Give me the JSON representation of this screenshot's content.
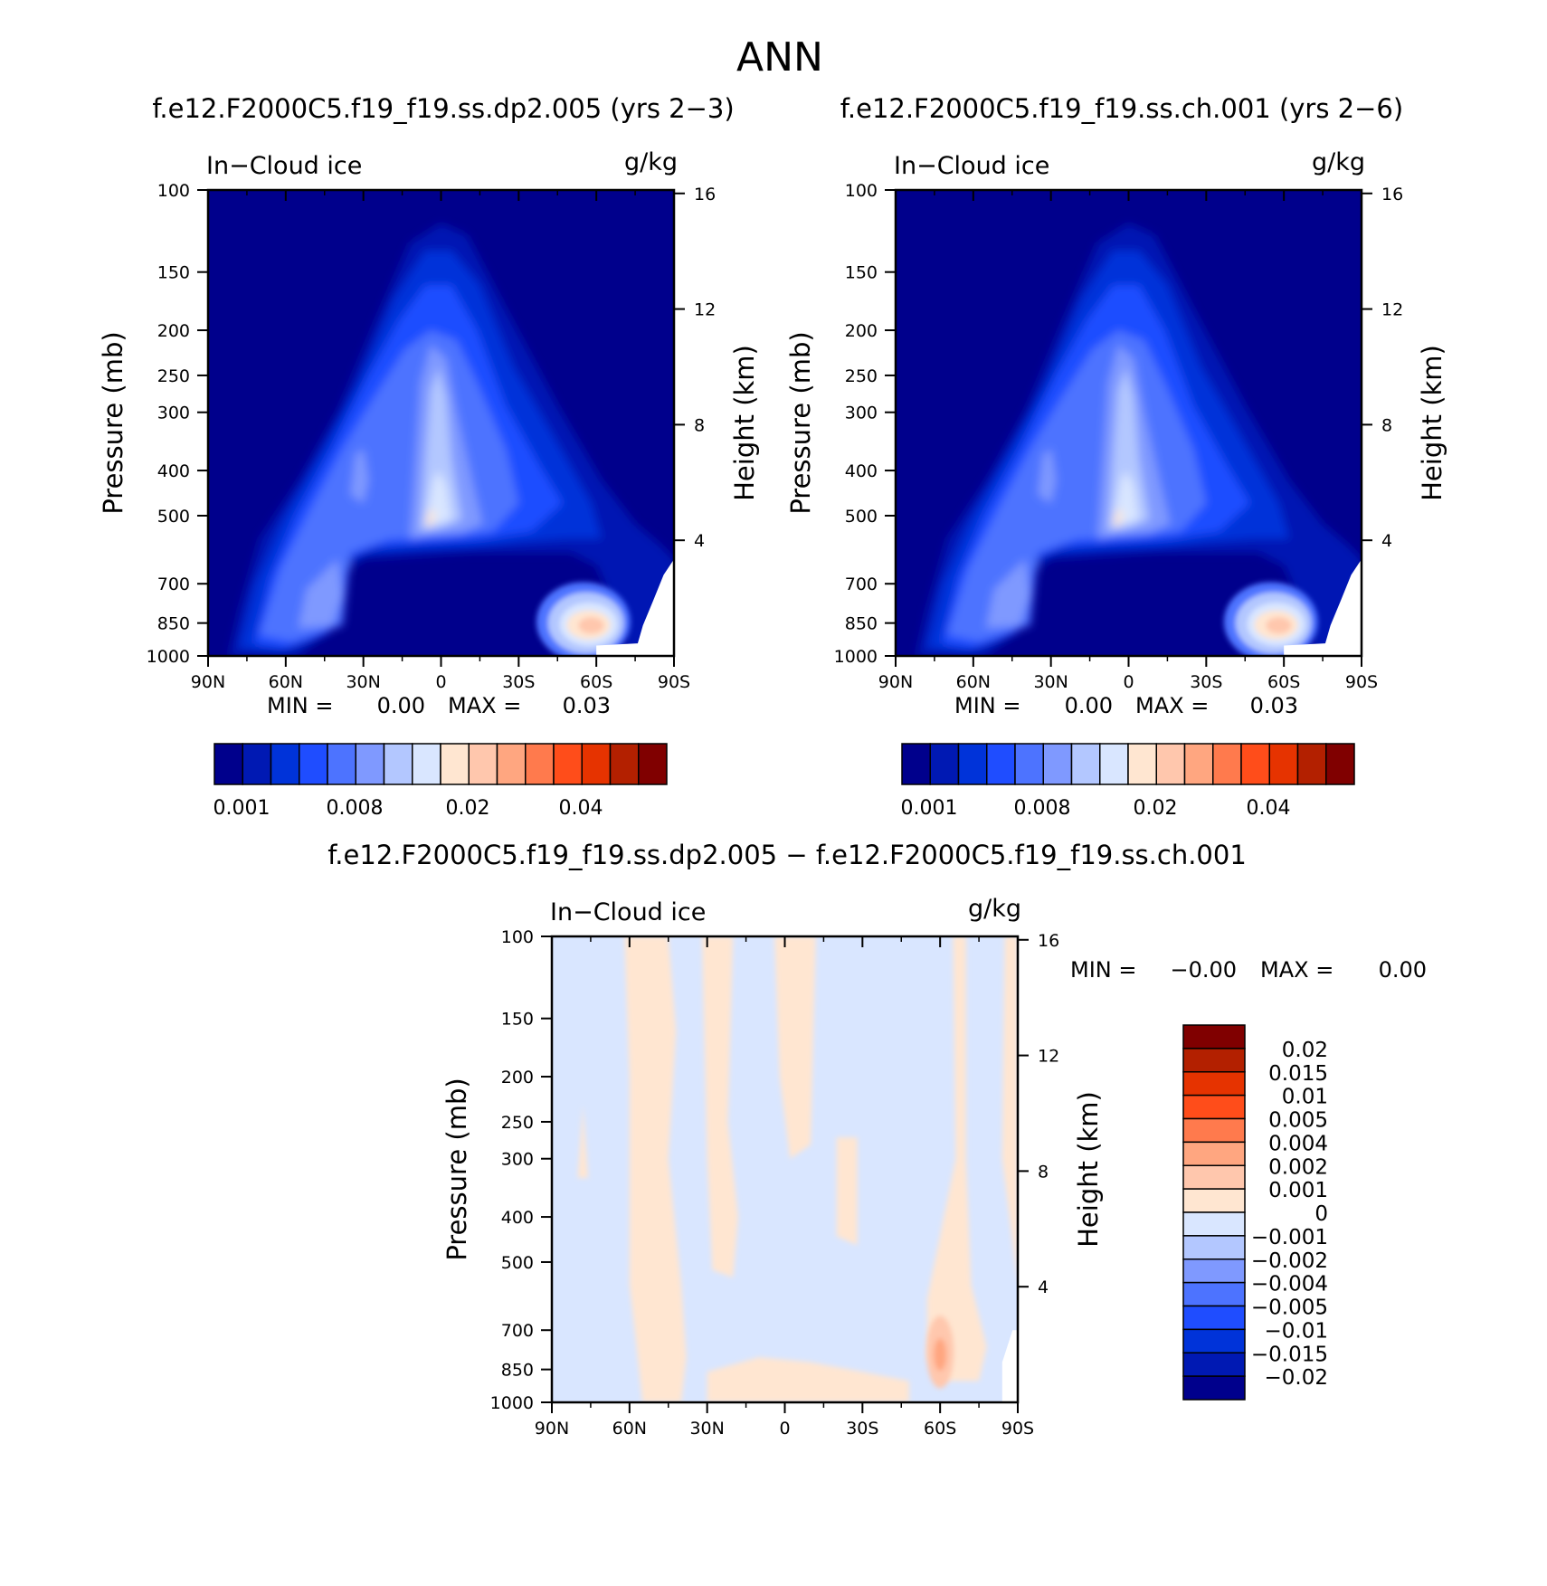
{
  "figure": {
    "title": "ANN"
  },
  "colors": {
    "abs_palette": [
      "#00008c",
      "#0019b3",
      "#0033d9",
      "#1f4dff",
      "#4d73ff",
      "#7f99ff",
      "#b3c7ff",
      "#d9e6ff",
      "#ffe6d1",
      "#ffc7ad",
      "#ffa680",
      "#ff7a4d",
      "#ff4d1a",
      "#e63300",
      "#b32000",
      "#800000"
    ],
    "diff_palette": [
      "#00008c",
      "#0019b3",
      "#0033d9",
      "#1f4dff",
      "#4d73ff",
      "#7f99ff",
      "#b3c7ff",
      "#d9e6ff",
      "#ffe6d1",
      "#ffc7ad",
      "#ffa680",
      "#ff7a4d",
      "#ff4d1a",
      "#e63300",
      "#b32000",
      "#800000"
    ]
  },
  "chart_data": [
    {
      "type": "heatmap",
      "title": "f.e12.F2000C5.f19_f19.ss.dp2.005 (yrs 2−3)",
      "variable": "In−Cloud ice",
      "units": "g/kg",
      "xlabel": "",
      "ylabel": "Pressure (mb)",
      "ylabel_right": "Height (km)",
      "x_ticks": [
        "90N",
        "60N",
        "30N",
        "0",
        "30S",
        "60S",
        "90S"
      ],
      "y_ticks": [
        "100",
        "150",
        "200",
        "250",
        "300",
        "400",
        "500",
        "700",
        "850",
        "1000"
      ],
      "y_right_ticks": [
        "16",
        "12",
        "8",
        "4"
      ],
      "xlim": [
        90,
        -90
      ],
      "ylim": [
        1000,
        100
      ],
      "y_scale": "log",
      "min_label": "MIN =",
      "min_value": "0.00",
      "max_label": "MAX =",
      "max_value": "0.03",
      "colorbar_labels": [
        "0.001",
        "0.008",
        "0.02",
        "0.04"
      ]
    },
    {
      "type": "heatmap",
      "title": "f.e12.F2000C5.f19_f19.ss.ch.001 (yrs 2−6)",
      "variable": "In−Cloud ice",
      "units": "g/kg",
      "xlabel": "",
      "ylabel": "Pressure (mb)",
      "ylabel_right": "Height (km)",
      "x_ticks": [
        "90N",
        "60N",
        "30N",
        "0",
        "30S",
        "60S",
        "90S"
      ],
      "y_ticks": [
        "100",
        "150",
        "200",
        "250",
        "300",
        "400",
        "500",
        "700",
        "850",
        "1000"
      ],
      "y_right_ticks": [
        "16",
        "12",
        "8",
        "4"
      ],
      "xlim": [
        90,
        -90
      ],
      "ylim": [
        1000,
        100
      ],
      "y_scale": "log",
      "min_label": "MIN =",
      "min_value": "0.00",
      "max_label": "MAX =",
      "max_value": "0.03",
      "colorbar_labels": [
        "0.001",
        "0.008",
        "0.02",
        "0.04"
      ]
    },
    {
      "type": "heatmap",
      "title": "f.e12.F2000C5.f19_f19.ss.dp2.005 − f.e12.F2000C5.f19_f19.ss.ch.001",
      "variable": "In−Cloud ice",
      "units": "g/kg",
      "xlabel": "",
      "ylabel": "Pressure (mb)",
      "ylabel_right": "Height (km)",
      "x_ticks": [
        "90N",
        "60N",
        "30N",
        "0",
        "30S",
        "60S",
        "90S"
      ],
      "y_ticks": [
        "100",
        "150",
        "200",
        "250",
        "300",
        "400",
        "500",
        "700",
        "850",
        "1000"
      ],
      "y_right_ticks": [
        "16",
        "12",
        "8",
        "4"
      ],
      "xlim": [
        90,
        -90
      ],
      "ylim": [
        1000,
        100
      ],
      "y_scale": "log",
      "min_label": "MIN =",
      "min_value": "−0.00",
      "max_label": "MAX =",
      "max_value": "0.00",
      "colorbar_labels": [
        "0.02",
        "0.015",
        "0.01",
        "0.005",
        "0.004",
        "0.002",
        "0.001",
        "0",
        "−0.001",
        "−0.002",
        "−0.004",
        "−0.005",
        "−0.01",
        "−0.015",
        "−0.02"
      ]
    }
  ]
}
